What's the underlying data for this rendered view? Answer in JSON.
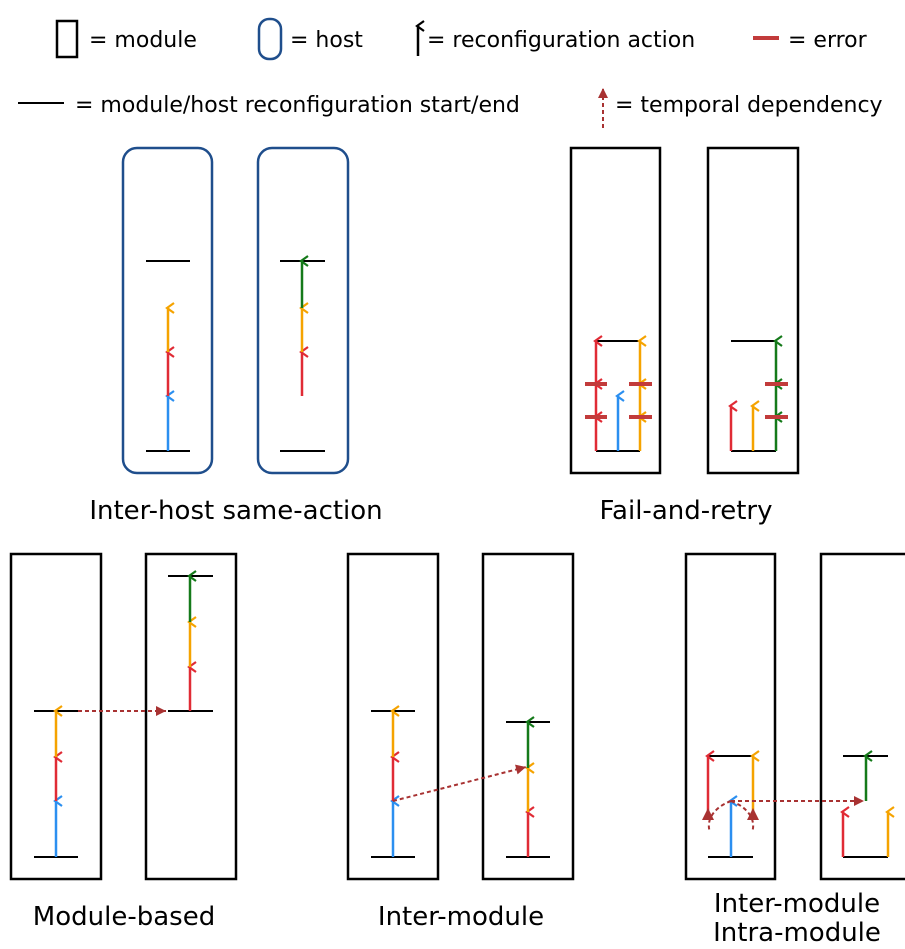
{
  "colors": {
    "stroke": "#000000",
    "host": "#1f4e8c",
    "blue": "#2b8ff0",
    "red": "#e02b35",
    "orange": "#f5a300",
    "green": "#157a1a",
    "error": "#c23b3b",
    "dependency": "#a83232"
  },
  "legend": {
    "module": "= module",
    "host": "= host",
    "action": "= reconfiguration action",
    "error": "= error",
    "startend": "= module/host reconfiguration start/end",
    "dependency": "= temporal dependency"
  },
  "sections": {
    "inter_host": "Inter-host same-action",
    "fail_retry": "Fail-and-retry",
    "module_based": "Module-based",
    "inter_module": "Inter-module",
    "inter_intra_1": "Inter-module",
    "inter_intra_2": "Intra-module"
  }
}
